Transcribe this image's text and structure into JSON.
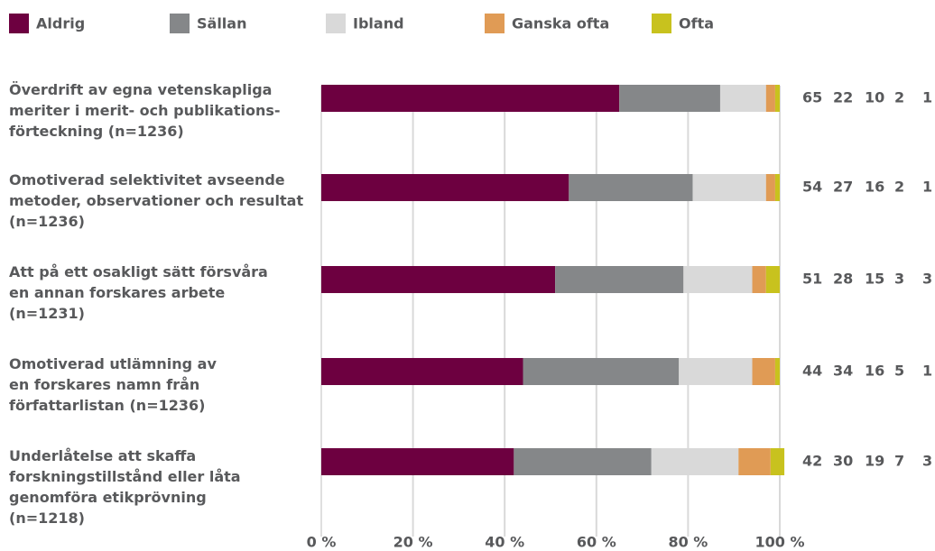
{
  "chart_data": {
    "type": "stacked_bar_horizontal",
    "categories": [
      "Överdrift av egna vetenskapliga\nmeriter i merit- och publikations-\nförteckning (n=1236)",
      "Omotiverad selektivitet avseende\nmetoder, observationer och resultat\n(n=1236)",
      "Att på ett osakligt sätt försvåra\nen annan forskares arbete\n(n=1231)",
      "Omotiverad utlämning av\nen forskares namn från\nförfattarlistan (n=1236)",
      "Underlåtelse att skaffa\nforskningstillstånd eller låta\ngenomföra etikprövning\n(n=1218)"
    ],
    "series": [
      {
        "name": "Aldrig",
        "color": "#6d0040",
        "values": [
          65,
          54,
          51,
          44,
          42
        ]
      },
      {
        "name": "Sällan",
        "color": "#858789",
        "values": [
          22,
          27,
          28,
          34,
          30
        ]
      },
      {
        "name": "Ibland",
        "color": "#d9d9d9",
        "values": [
          10,
          16,
          15,
          16,
          19
        ]
      },
      {
        "name": "Ganska ofta",
        "color": "#e09b55",
        "values": [
          2,
          2,
          3,
          5,
          7
        ]
      },
      {
        "name": "Ofta",
        "color": "#c8c21e",
        "values": [
          1,
          1,
          3,
          1,
          3
        ]
      }
    ],
    "xlim": [
      0,
      100
    ],
    "xticks": [
      {
        "value": 0,
        "label": "0 %"
      },
      {
        "value": 20,
        "label": "20 %"
      },
      {
        "value": 40,
        "label": "40 %"
      },
      {
        "value": 60,
        "label": "60 %"
      },
      {
        "value": 80,
        "label": "80 %"
      },
      {
        "value": 100,
        "label": "100 %"
      }
    ],
    "grid": true
  }
}
